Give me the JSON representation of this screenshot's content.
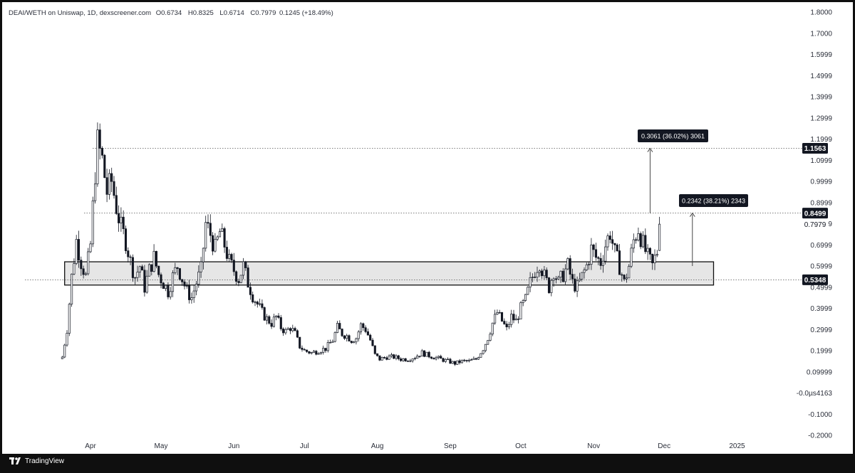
{
  "legend": {
    "symbol": "DEAI/WETH on Uniswap, 1D, dexscreener.com",
    "o_label": "O",
    "o_value": "0.6734",
    "h_label": "H",
    "h_value": "0.8325",
    "l_label": "L",
    "l_value": "0.6714",
    "c_label": "C",
    "c_value": "0.7979",
    "change": "0.1245 (+18.49%)"
  },
  "footer": {
    "brand": "TradingView"
  },
  "colors": {
    "candle": "#131722",
    "box_fill": "#e6e6e6",
    "tag_bg": "#131722",
    "tag_text": "#ffffff"
  },
  "chart_data": {
    "type": "candlestick",
    "y_ticks": [
      "1.8000",
      "1.7000",
      "1.5999",
      "1.4999",
      "1.3999",
      "1.2999",
      "1.1999",
      "1.0999",
      "0.9999",
      "0.8999",
      "0.7999",
      "0.6999",
      "0.5999",
      "0.4999",
      "0.3999",
      "0.2999",
      "0.1999",
      "0.09999",
      "-0.0µs4163",
      "-0.1000",
      "-0.2000"
    ],
    "y_tick_values": [
      1.8,
      1.7,
      1.6,
      1.5,
      1.4,
      1.3,
      1.2,
      1.1,
      1.0,
      0.9,
      0.8,
      0.7,
      0.6,
      0.5,
      0.4,
      0.3,
      0.2,
      0.1,
      0.0,
      -0.1,
      -0.2
    ],
    "x_ticks": [
      "Apr",
      "May",
      "Jun",
      "Jul",
      "Aug",
      "Sep",
      "Oct",
      "Nov",
      "Dec",
      "2025"
    ],
    "x_tick_days": [
      0,
      30,
      61,
      91,
      122,
      153,
      183,
      214,
      244,
      275
    ],
    "price_tags": [
      {
        "label": "1.1563",
        "value": 1.1563,
        "style": "dark"
      },
      {
        "label": "0.8499",
        "value": 0.8499,
        "style": "dark"
      },
      {
        "label": "0.7979",
        "value": 0.7979,
        "style": "plain"
      },
      {
        "label": "0.5348",
        "value": 0.5348,
        "style": "dark"
      }
    ],
    "horizontal_lines": [
      1.1563,
      0.8499,
      0.5348
    ],
    "zone": {
      "top": 0.62,
      "bottom": 0.51,
      "start_day": -11,
      "end_day": 265
    },
    "measures": [
      {
        "label": "0.3061 (36.02%) 3061",
        "from": 0.85,
        "to": 1.156,
        "day": 238
      },
      {
        "label": "0.2342 (38.21%) 2343",
        "from": 0.6,
        "to": 0.85,
        "day": 256
      }
    ],
    "closes": [
      {
        "d": -12,
        "v": 0.17
      },
      {
        "d": -10,
        "v": 0.3
      },
      {
        "d": -8,
        "v": 0.55
      },
      {
        "d": -6,
        "v": 0.72
      },
      {
        "d": -4,
        "v": 0.62
      },
      {
        "d": -2,
        "v": 0.55
      },
      {
        "d": 0,
        "v": 0.7
      },
      {
        "d": 2,
        "v": 1.05
      },
      {
        "d": 3,
        "v": 1.18
      },
      {
        "d": 5,
        "v": 1.1
      },
      {
        "d": 7,
        "v": 0.95
      },
      {
        "d": 9,
        "v": 1.0
      },
      {
        "d": 11,
        "v": 0.88
      },
      {
        "d": 13,
        "v": 0.78
      },
      {
        "d": 15,
        "v": 0.72
      },
      {
        "d": 17,
        "v": 0.62
      },
      {
        "d": 19,
        "v": 0.55
      },
      {
        "d": 21,
        "v": 0.6
      },
      {
        "d": 23,
        "v": 0.5
      },
      {
        "d": 25,
        "v": 0.58
      },
      {
        "d": 27,
        "v": 0.64
      },
      {
        "d": 29,
        "v": 0.56
      },
      {
        "d": 31,
        "v": 0.52
      },
      {
        "d": 33,
        "v": 0.48
      },
      {
        "d": 35,
        "v": 0.55
      },
      {
        "d": 37,
        "v": 0.6
      },
      {
        "d": 39,
        "v": 0.54
      },
      {
        "d": 41,
        "v": 0.48
      },
      {
        "d": 43,
        "v": 0.45
      },
      {
        "d": 45,
        "v": 0.52
      },
      {
        "d": 47,
        "v": 0.58
      },
      {
        "d": 49,
        "v": 0.8
      },
      {
        "d": 51,
        "v": 0.75
      },
      {
        "d": 53,
        "v": 0.68
      },
      {
        "d": 55,
        "v": 0.76
      },
      {
        "d": 57,
        "v": 0.7
      },
      {
        "d": 59,
        "v": 0.62
      },
      {
        "d": 61,
        "v": 0.58
      },
      {
        "d": 63,
        "v": 0.54
      },
      {
        "d": 65,
        "v": 0.6
      },
      {
        "d": 67,
        "v": 0.52
      },
      {
        "d": 69,
        "v": 0.46
      },
      {
        "d": 71,
        "v": 0.42
      },
      {
        "d": 73,
        "v": 0.38
      },
      {
        "d": 75,
        "v": 0.35
      },
      {
        "d": 77,
        "v": 0.33
      },
      {
        "d": 79,
        "v": 0.36
      },
      {
        "d": 81,
        "v": 0.31
      },
      {
        "d": 83,
        "v": 0.29
      },
      {
        "d": 85,
        "v": 0.31
      },
      {
        "d": 87,
        "v": 0.28
      },
      {
        "d": 89,
        "v": 0.22
      },
      {
        "d": 91,
        "v": 0.2
      },
      {
        "d": 94,
        "v": 0.19
      },
      {
        "d": 97,
        "v": 0.2
      },
      {
        "d": 100,
        "v": 0.21
      },
      {
        "d": 103,
        "v": 0.25
      },
      {
        "d": 105,
        "v": 0.31
      },
      {
        "d": 107,
        "v": 0.28
      },
      {
        "d": 109,
        "v": 0.27
      },
      {
        "d": 111,
        "v": 0.25
      },
      {
        "d": 113,
        "v": 0.26
      },
      {
        "d": 115,
        "v": 0.32
      },
      {
        "d": 117,
        "v": 0.3
      },
      {
        "d": 119,
        "v": 0.25
      },
      {
        "d": 121,
        "v": 0.18
      },
      {
        "d": 123,
        "v": 0.16
      },
      {
        "d": 126,
        "v": 0.17
      },
      {
        "d": 129,
        "v": 0.17
      },
      {
        "d": 132,
        "v": 0.16
      },
      {
        "d": 135,
        "v": 0.16
      },
      {
        "d": 138,
        "v": 0.17
      },
      {
        "d": 141,
        "v": 0.19
      },
      {
        "d": 143,
        "v": 0.18
      },
      {
        "d": 146,
        "v": 0.17
      },
      {
        "d": 149,
        "v": 0.16
      },
      {
        "d": 152,
        "v": 0.15
      },
      {
        "d": 155,
        "v": 0.14
      },
      {
        "d": 158,
        "v": 0.15
      },
      {
        "d": 161,
        "v": 0.15
      },
      {
        "d": 164,
        "v": 0.16
      },
      {
        "d": 167,
        "v": 0.21
      },
      {
        "d": 169,
        "v": 0.26
      },
      {
        "d": 171,
        "v": 0.33
      },
      {
        "d": 173,
        "v": 0.38
      },
      {
        "d": 175,
        "v": 0.34
      },
      {
        "d": 177,
        "v": 0.3
      },
      {
        "d": 179,
        "v": 0.36
      },
      {
        "d": 181,
        "v": 0.34
      },
      {
        "d": 183,
        "v": 0.4
      },
      {
        "d": 185,
        "v": 0.44
      },
      {
        "d": 187,
        "v": 0.52
      },
      {
        "d": 189,
        "v": 0.58
      },
      {
        "d": 191,
        "v": 0.62
      },
      {
        "d": 193,
        "v": 0.55
      },
      {
        "d": 195,
        "v": 0.5
      },
      {
        "d": 197,
        "v": 0.58
      },
      {
        "d": 199,
        "v": 0.52
      },
      {
        "d": 201,
        "v": 0.56
      },
      {
        "d": 203,
        "v": 0.6
      },
      {
        "d": 205,
        "v": 0.52
      },
      {
        "d": 207,
        "v": 0.5
      },
      {
        "d": 209,
        "v": 0.55
      },
      {
        "d": 211,
        "v": 0.6
      },
      {
        "d": 213,
        "v": 0.68
      },
      {
        "d": 215,
        "v": 0.64
      },
      {
        "d": 217,
        "v": 0.62
      },
      {
        "d": 219,
        "v": 0.7
      },
      {
        "d": 221,
        "v": 0.76
      },
      {
        "d": 223,
        "v": 0.66
      },
      {
        "d": 225,
        "v": 0.6
      },
      {
        "d": 227,
        "v": 0.52
      },
      {
        "d": 229,
        "v": 0.6
      },
      {
        "d": 231,
        "v": 0.72
      },
      {
        "d": 233,
        "v": 0.78
      },
      {
        "d": 235,
        "v": 0.7
      },
      {
        "d": 237,
        "v": 0.64
      },
      {
        "d": 239,
        "v": 0.6
      },
      {
        "d": 241,
        "v": 0.67
      },
      {
        "d": 242,
        "v": 0.7979
      }
    ]
  }
}
